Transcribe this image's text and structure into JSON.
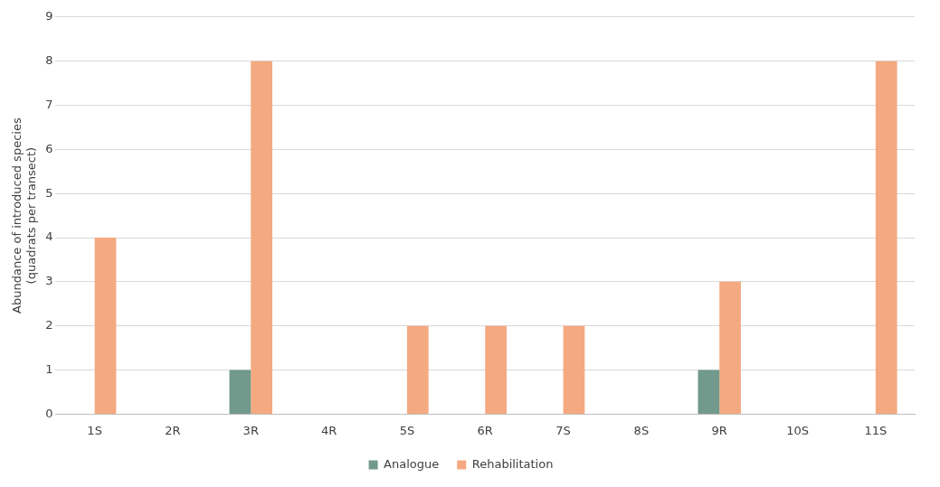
{
  "chart_data": {
    "type": "bar",
    "ylabel": "Abundance of introduced species\n(quadrats per transect)",
    "categories": [
      "1S",
      "2R",
      "3R",
      "4R",
      "5S",
      "6R",
      "7S",
      "8S",
      "9R",
      "10S",
      "11S"
    ],
    "series": [
      {
        "name": "Analogue",
        "color": "#71998c",
        "values": [
          0,
          0,
          1,
          0,
          0,
          0,
          0,
          0,
          1,
          0,
          0
        ]
      },
      {
        "name": "Rehabilitation",
        "color": "#f5a980",
        "values": [
          4,
          0,
          8,
          0,
          2,
          2,
          2,
          0,
          3,
          0,
          8
        ]
      }
    ],
    "ylim": [
      0,
      9
    ],
    "yticks": [
      0,
      1,
      2,
      3,
      4,
      5,
      6,
      7,
      8,
      9
    ],
    "grid": "y",
    "legend": "bottom"
  }
}
